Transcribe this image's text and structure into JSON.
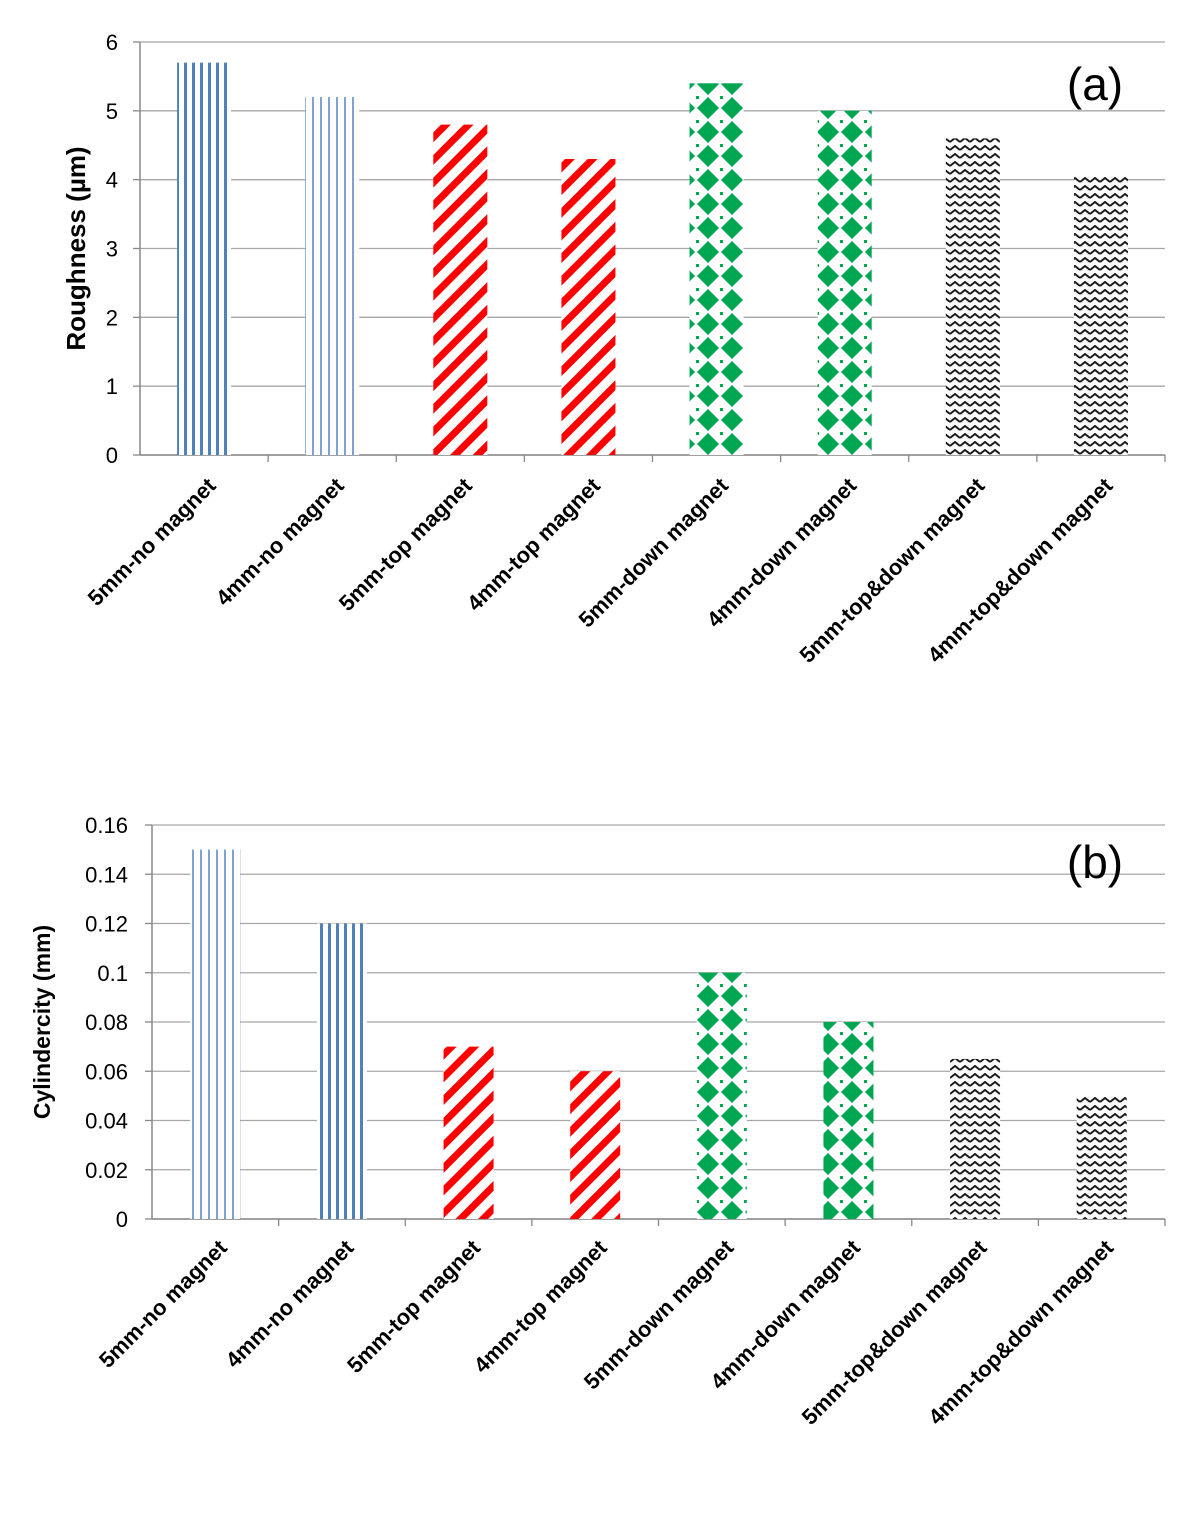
{
  "chart_data": [
    {
      "type": "bar",
      "panel_label": "(a)",
      "title": "",
      "xlabel": "",
      "ylabel": "Roughness (µm)",
      "ylim": [
        0,
        6
      ],
      "yticks": [
        "0",
        "1",
        "2",
        "3",
        "4",
        "5",
        "6"
      ],
      "grid": true,
      "categories": [
        "5mm-no magnet",
        "4mm-no magnet",
        "5mm-top magnet",
        "4mm-top magnet",
        "5mm-down magnet",
        "4mm-down magnet",
        "5mm-top&down magnet",
        "4mm-top&down magnet"
      ],
      "values": [
        5.7,
        5.2,
        4.8,
        4.3,
        5.4,
        5.0,
        4.6,
        4.05
      ],
      "bar_patterns": [
        "vstripe-dense",
        "vstripe-light",
        "diag",
        "diag",
        "diamond",
        "diamond",
        "zigzag",
        "zigzag"
      ]
    },
    {
      "type": "bar",
      "panel_label": "(b)",
      "title": "",
      "xlabel": "",
      "ylabel": "Cylindercity (mm)",
      "ylim": [
        0,
        0.16
      ],
      "yticks": [
        "0",
        "0.02",
        "0.04",
        "0.06",
        "0.08",
        "0.1",
        "0.12",
        "0.14",
        "0.16"
      ],
      "grid": true,
      "categories": [
        "5mm-no magnet",
        "4mm-no magnet",
        "5mm-top magnet",
        "4mm-top magnet",
        "5mm-down magnet",
        "4mm-down magnet",
        "5mm-top&down magnet",
        "4mm-top&down magnet"
      ],
      "values": [
        0.15,
        0.12,
        0.07,
        0.06,
        0.1,
        0.08,
        0.065,
        0.05
      ],
      "bar_patterns": [
        "vstripe-light",
        "vstripe-dense",
        "diag",
        "diag",
        "diamond",
        "diamond",
        "zigzag",
        "zigzag"
      ]
    }
  ],
  "colors": {
    "blue": "#4f81bd",
    "red": "#ff0000",
    "green": "#00a651",
    "black": "#1a1a1a",
    "grid": "#a6a6a6",
    "axis": "#888888"
  }
}
